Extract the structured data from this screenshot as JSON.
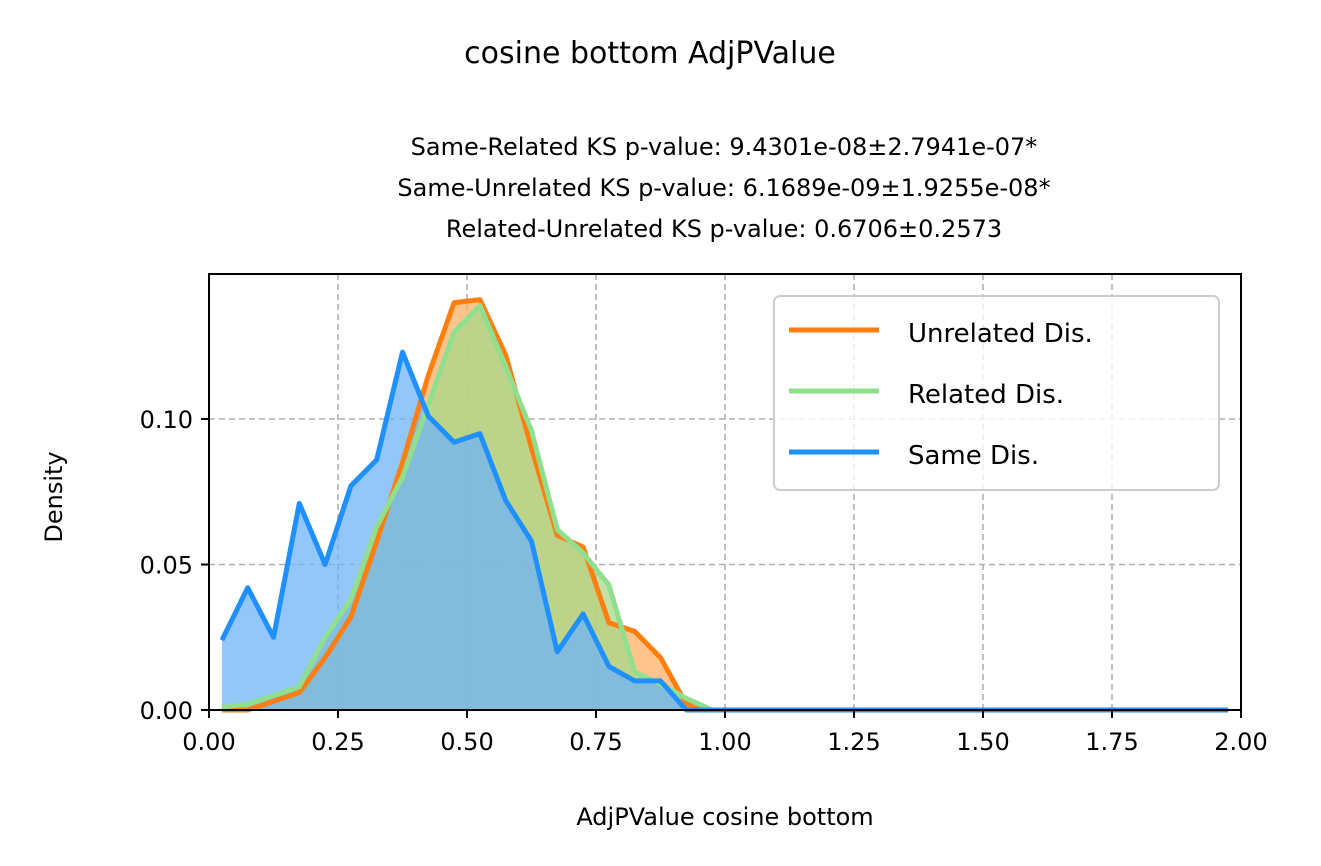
{
  "chart_data": {
    "type": "area",
    "title": "cosine bottom AdjPValue",
    "subtitle_lines": [
      "Same-Related KS p-value: 9.4301e-08±2.7941e-07*",
      "Same-Unrelated KS p-value: 6.1689e-09±1.9255e-08*",
      "Related-Unrelated KS p-value: 0.6706±0.2573"
    ],
    "xlabel": "AdjPValue cosine bottom",
    "ylabel": "Density",
    "xlim": [
      0,
      2
    ],
    "ylim": [
      0,
      0.15
    ],
    "xticks": [
      "0.00",
      "0.25",
      "0.50",
      "0.75",
      "1.00",
      "1.25",
      "1.50",
      "1.75",
      "2.00"
    ],
    "yticks": [
      "0.00",
      "0.05",
      "0.10"
    ],
    "grid": true,
    "legend_position": "upper right",
    "series": [
      {
        "name": "Unrelated Dis.",
        "color": "#ff7f0e",
        "fill": "#ffb066",
        "x": [
          0.025,
          0.075,
          0.125,
          0.175,
          0.225,
          0.275,
          0.325,
          0.375,
          0.425,
          0.475,
          0.525,
          0.575,
          0.625,
          0.675,
          0.725,
          0.775,
          0.825,
          0.875,
          0.925,
          0.975,
          1.025,
          1.075,
          1.125,
          1.175,
          1.225,
          1.275,
          1.325,
          1.375,
          1.425,
          1.475,
          1.525,
          1.575,
          1.625,
          1.675,
          1.725,
          1.775,
          1.825,
          1.875,
          1.925,
          1.975
        ],
        "y": [
          0.0,
          0.0,
          0.003,
          0.006,
          0.018,
          0.032,
          0.058,
          0.085,
          0.115,
          0.14,
          0.141,
          0.122,
          0.09,
          0.06,
          0.056,
          0.03,
          0.027,
          0.018,
          0.002,
          0.0,
          0.0,
          0.0,
          0.0,
          0.0,
          0.0,
          0.0,
          0.0,
          0.0,
          0.0,
          0.0,
          0.0,
          0.0,
          0.0,
          0.0,
          0.0,
          0.0,
          0.0,
          0.0,
          0.0,
          0.0
        ]
      },
      {
        "name": "Related Dis.",
        "color": "#8fdf8f",
        "fill": "#a8d88a",
        "x": [
          0.025,
          0.075,
          0.125,
          0.175,
          0.225,
          0.275,
          0.325,
          0.375,
          0.425,
          0.475,
          0.525,
          0.575,
          0.625,
          0.675,
          0.725,
          0.775,
          0.825,
          0.875,
          0.925,
          0.975,
          1.025,
          1.075,
          1.125,
          1.175,
          1.225,
          1.275,
          1.325,
          1.375,
          1.425,
          1.475,
          1.525,
          1.575,
          1.625,
          1.675,
          1.725,
          1.775,
          1.825,
          1.875,
          1.925,
          1.975
        ],
        "y": [
          0.001,
          0.002,
          0.005,
          0.008,
          0.025,
          0.038,
          0.063,
          0.08,
          0.105,
          0.13,
          0.139,
          0.118,
          0.096,
          0.062,
          0.054,
          0.043,
          0.013,
          0.009,
          0.004,
          0.0,
          0.0,
          0.0,
          0.0,
          0.0,
          0.0,
          0.0,
          0.0,
          0.0,
          0.0,
          0.0,
          0.0,
          0.0,
          0.0,
          0.0,
          0.0,
          0.0,
          0.0,
          0.0,
          0.0,
          0.0
        ]
      },
      {
        "name": "Same Dis.",
        "color": "#1e90ff",
        "fill": "#6fb3f7",
        "x": [
          0.025,
          0.075,
          0.125,
          0.175,
          0.225,
          0.275,
          0.325,
          0.375,
          0.425,
          0.475,
          0.525,
          0.575,
          0.625,
          0.675,
          0.725,
          0.775,
          0.825,
          0.875,
          0.925,
          0.975,
          1.025,
          1.075,
          1.125,
          1.175,
          1.225,
          1.275,
          1.325,
          1.375,
          1.425,
          1.475,
          1.525,
          1.575,
          1.625,
          1.675,
          1.725,
          1.775,
          1.825,
          1.875,
          1.925,
          1.975
        ],
        "y": [
          0.024,
          0.042,
          0.025,
          0.071,
          0.05,
          0.077,
          0.086,
          0.123,
          0.101,
          0.092,
          0.095,
          0.072,
          0.058,
          0.02,
          0.033,
          0.015,
          0.01,
          0.01,
          0.0,
          0.0,
          0.0,
          0.0,
          0.0,
          0.0,
          0.0,
          0.0,
          0.0,
          0.0,
          0.0,
          0.0,
          0.0,
          0.0,
          0.0,
          0.0,
          0.0,
          0.0,
          0.0,
          0.0,
          0.0,
          0.0
        ]
      }
    ]
  }
}
